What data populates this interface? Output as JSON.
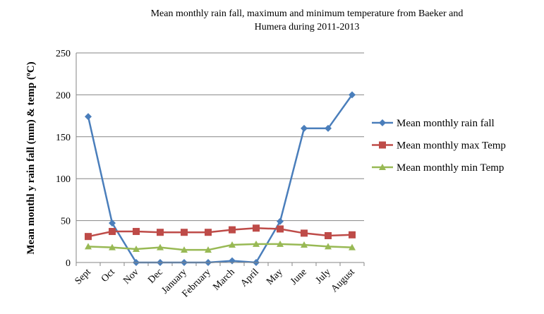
{
  "chart_data": {
    "type": "line",
    "title": "Mean monthly rain fall, maximum and minimum temperature  from Baeker and Humera during 2011-2013",
    "y_label": "Mean monthl y  rain fall (mm) & temp (ºC)",
    "categories": [
      "Sept",
      "Oct",
      "Nov",
      "Dec",
      "January",
      "February",
      "March",
      "April",
      "May",
      "June",
      "July",
      "August"
    ],
    "series": [
      {
        "name": "Mean monthly  rain fall",
        "color": "#4a7ebb",
        "marker": "diamond",
        "values": [
          174,
          47,
          0,
          0,
          0,
          0,
          2,
          0,
          49,
          160,
          160,
          200
        ]
      },
      {
        "name": "Mean monthly max Temp",
        "color": "#be4b48",
        "marker": "square",
        "values": [
          31,
          37,
          37,
          36,
          36,
          36,
          39,
          41,
          40,
          35,
          32,
          33
        ]
      },
      {
        "name": "Mean monthly min Temp",
        "color": "#98b954",
        "marker": "triangle",
        "values": [
          19,
          18,
          16,
          18,
          15,
          15,
          21,
          22,
          22,
          21,
          19,
          18
        ]
      }
    ],
    "ylim": [
      0,
      250
    ],
    "yticks": [
      0,
      50,
      100,
      150,
      200,
      250
    ],
    "grid": true,
    "legend": "right"
  }
}
